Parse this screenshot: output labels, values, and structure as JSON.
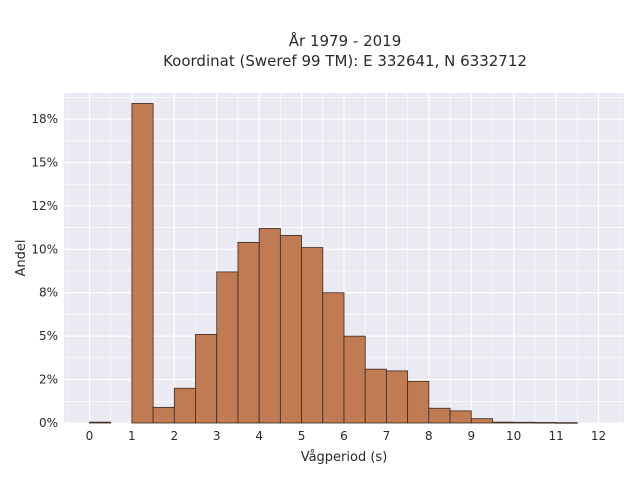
{
  "chart_data": {
    "type": "bar",
    "title": "År 1979 - 2019",
    "subtitle": "Koordinat (Sweref 99 TM): E 332641, N 6332712",
    "xlabel": "Vågperiod (s)",
    "ylabel": "Andel",
    "xlim": [
      -0.6,
      12.6
    ],
    "ylim": [
      0,
      19.0
    ],
    "x_ticks": [
      0,
      1,
      2,
      3,
      4,
      5,
      6,
      7,
      8,
      9,
      10,
      11,
      12
    ],
    "x_tick_labels": [
      "0",
      "1",
      "2",
      "3",
      "4",
      "5",
      "6",
      "7",
      "8",
      "9",
      "10",
      "11",
      "12"
    ],
    "y_ticks": [
      0,
      2.5,
      5,
      7.5,
      10,
      12.5,
      15,
      17.5
    ],
    "y_tick_labels": [
      "0%",
      "2%",
      "5%",
      "8%",
      "10%",
      "12%",
      "15%",
      "18%"
    ],
    "grid": true,
    "bin_width": 0.5,
    "bar_color": "#c17b52",
    "edge_color": "#3a2a20",
    "background_color": "#eaeaf2",
    "bins": [
      {
        "x0": 0.0,
        "x1": 0.5,
        "value": 0.05
      },
      {
        "x0": 1.0,
        "x1": 1.5,
        "value": 18.4
      },
      {
        "x0": 1.5,
        "x1": 2.0,
        "value": 0.9
      },
      {
        "x0": 2.0,
        "x1": 2.5,
        "value": 2.0
      },
      {
        "x0": 2.5,
        "x1": 3.0,
        "value": 5.1
      },
      {
        "x0": 3.0,
        "x1": 3.5,
        "value": 8.7
      },
      {
        "x0": 3.5,
        "x1": 4.0,
        "value": 10.4
      },
      {
        "x0": 4.0,
        "x1": 4.5,
        "value": 11.2
      },
      {
        "x0": 4.5,
        "x1": 5.0,
        "value": 10.8
      },
      {
        "x0": 5.0,
        "x1": 5.5,
        "value": 10.1
      },
      {
        "x0": 5.5,
        "x1": 6.0,
        "value": 7.5
      },
      {
        "x0": 6.0,
        "x1": 6.5,
        "value": 5.0
      },
      {
        "x0": 6.5,
        "x1": 7.0,
        "value": 3.1
      },
      {
        "x0": 7.0,
        "x1": 7.5,
        "value": 3.0
      },
      {
        "x0": 7.5,
        "x1": 8.0,
        "value": 2.4
      },
      {
        "x0": 8.0,
        "x1": 8.5,
        "value": 0.85
      },
      {
        "x0": 8.5,
        "x1": 9.0,
        "value": 0.7
      },
      {
        "x0": 9.0,
        "x1": 9.5,
        "value": 0.25
      },
      {
        "x0": 9.5,
        "x1": 10.0,
        "value": 0.05
      },
      {
        "x0": 10.0,
        "x1": 10.5,
        "value": 0.04
      },
      {
        "x0": 10.5,
        "x1": 11.0,
        "value": 0.03
      },
      {
        "x0": 11.0,
        "x1": 11.5,
        "value": 0.02
      }
    ]
  }
}
